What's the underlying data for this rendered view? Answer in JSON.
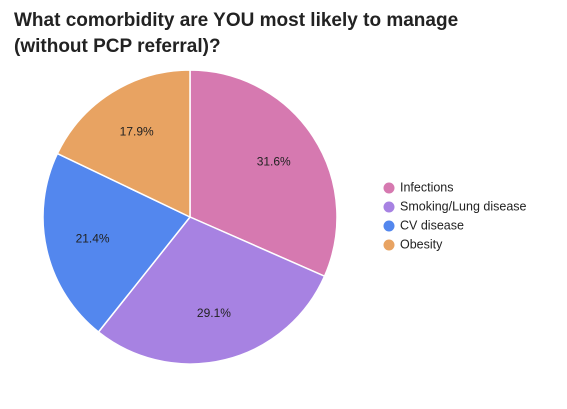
{
  "chart_data": {
    "type": "pie",
    "title": "What comorbidity are YOU most likely to manage (without PCP referral)?",
    "slices": [
      {
        "label": "Infections",
        "value": 31.6,
        "display": "31.6%",
        "color": "#d679b0"
      },
      {
        "label": "Smoking/Lung disease",
        "value": 29.1,
        "display": "29.1%",
        "color": "#a782e2"
      },
      {
        "label": "CV disease",
        "value": 21.4,
        "display": "21.4%",
        "color": "#5387ee"
      },
      {
        "label": "Obesity",
        "value": 17.9,
        "display": "17.9%",
        "color": "#e8a362"
      }
    ],
    "start_angle_deg": 0,
    "direction": "clockwise",
    "legend_position": "right"
  }
}
